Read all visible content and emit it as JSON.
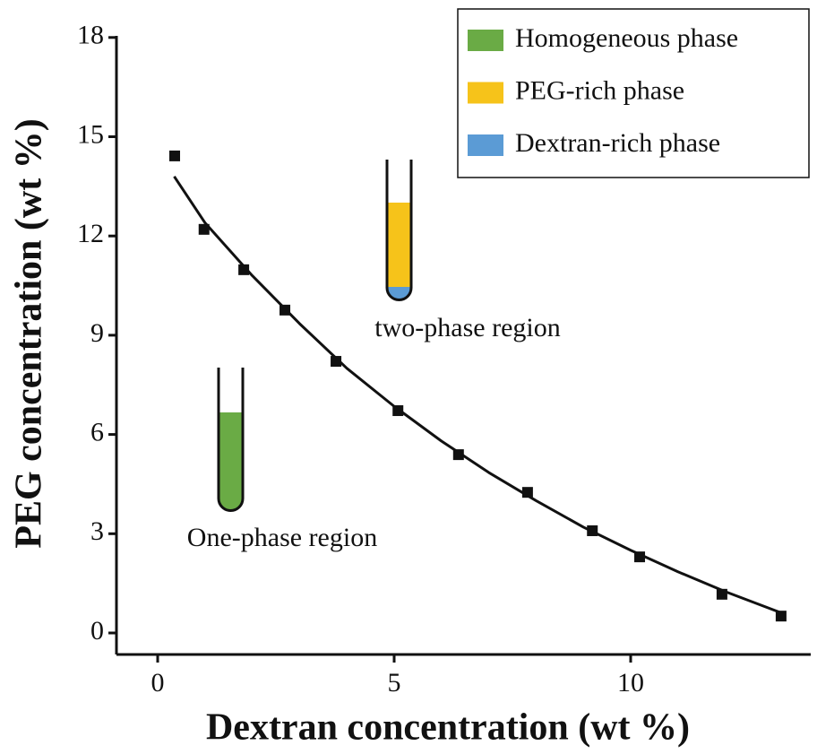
{
  "chart_data": {
    "type": "scatter",
    "xlabel": "Dextran concentration (wt %)",
    "ylabel": "PEG concentration (wt %)",
    "xlim": [
      -0.9,
      13.8
    ],
    "ylim": [
      -0.6,
      18
    ],
    "xticks": [
      0,
      5,
      10
    ],
    "yticks": [
      0,
      3,
      6,
      9,
      12,
      15,
      18
    ],
    "series": [
      {
        "type": "scatter",
        "color": "#111111",
        "x": [
          0.36,
          0.98,
          1.82,
          2.69,
          3.77,
          5.08,
          6.36,
          7.82,
          9.19,
          10.19,
          11.93,
          13.18
        ],
        "values": [
          14.42,
          12.2,
          10.98,
          9.76,
          8.21,
          6.72,
          5.39,
          4.25,
          3.09,
          2.3,
          1.17,
          0.51
        ]
      },
      {
        "type": "line",
        "color": "#111111",
        "x": [
          0.35,
          1,
          2,
          3,
          4,
          5,
          6,
          7,
          8,
          9,
          10,
          11,
          12,
          13.2
        ],
        "values": [
          13.8,
          12.4,
          10.8,
          9.35,
          8.0,
          6.85,
          5.8,
          4.85,
          4.0,
          3.2,
          2.5,
          1.85,
          1.25,
          0.6
        ]
      }
    ],
    "legend": [
      {
        "label": "Homogeneous phase",
        "color": "#6aab45"
      },
      {
        "label": "PEG-rich phase",
        "color": "#f6c31a"
      },
      {
        "label": "Dextran-rich phase",
        "color": "#5b9bd5"
      }
    ],
    "annotations": [
      "two-phase region",
      "One-phase region"
    ]
  }
}
